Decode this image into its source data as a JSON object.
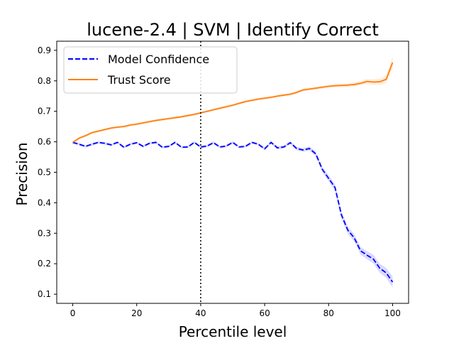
{
  "chart_data": {
    "type": "line",
    "title": "lucene-2.4 | SVM | Identify Correct",
    "xlabel": "Percentile level",
    "ylabel": "Precision",
    "xlim": [
      -5,
      105
    ],
    "ylim": [
      0.07,
      0.93
    ],
    "xticks": [
      0,
      20,
      40,
      60,
      80,
      100
    ],
    "yticks": [
      0.1,
      0.2,
      0.3,
      0.4,
      0.5,
      0.6,
      0.7,
      0.8,
      0.9
    ],
    "vline_x": 40,
    "legend_position": "upper-left",
    "x": [
      0,
      2,
      4,
      6,
      8,
      10,
      12,
      14,
      16,
      18,
      20,
      22,
      24,
      26,
      28,
      30,
      32,
      34,
      36,
      38,
      40,
      42,
      44,
      46,
      48,
      50,
      52,
      54,
      56,
      58,
      60,
      62,
      64,
      66,
      68,
      70,
      72,
      74,
      76,
      78,
      80,
      82,
      84,
      86,
      88,
      90,
      92,
      94,
      96,
      98,
      100
    ],
    "series": [
      {
        "name": "Model Confidence",
        "color": "#0000ff",
        "style": "dashed",
        "values": [
          0.598,
          0.592,
          0.585,
          0.592,
          0.598,
          0.595,
          0.59,
          0.598,
          0.582,
          0.592,
          0.597,
          0.585,
          0.595,
          0.598,
          0.582,
          0.585,
          0.598,
          0.582,
          0.583,
          0.598,
          0.583,
          0.586,
          0.597,
          0.583,
          0.586,
          0.598,
          0.583,
          0.585,
          0.598,
          0.592,
          0.577,
          0.598,
          0.58,
          0.583,
          0.597,
          0.578,
          0.573,
          0.578,
          0.56,
          0.51,
          0.48,
          0.45,
          0.36,
          0.31,
          0.285,
          0.242,
          0.228,
          0.215,
          0.185,
          0.17,
          0.14
        ],
        "band": [
          0.004,
          0.004,
          0.004,
          0.004,
          0.004,
          0.004,
          0.004,
          0.004,
          0.004,
          0.004,
          0.004,
          0.004,
          0.004,
          0.004,
          0.004,
          0.004,
          0.004,
          0.004,
          0.004,
          0.004,
          0.004,
          0.004,
          0.004,
          0.004,
          0.004,
          0.004,
          0.004,
          0.004,
          0.004,
          0.004,
          0.005,
          0.005,
          0.005,
          0.005,
          0.005,
          0.006,
          0.006,
          0.007,
          0.008,
          0.009,
          0.01,
          0.011,
          0.012,
          0.012,
          0.012,
          0.013,
          0.013,
          0.014,
          0.015,
          0.016,
          0.018
        ]
      },
      {
        "name": "Trust Score",
        "color": "#ff7f0e",
        "style": "solid",
        "values": [
          0.598,
          0.612,
          0.62,
          0.63,
          0.635,
          0.64,
          0.645,
          0.648,
          0.65,
          0.655,
          0.658,
          0.662,
          0.666,
          0.67,
          0.673,
          0.676,
          0.679,
          0.682,
          0.686,
          0.69,
          0.695,
          0.7,
          0.705,
          0.71,
          0.715,
          0.72,
          0.726,
          0.732,
          0.736,
          0.74,
          0.743,
          0.746,
          0.75,
          0.753,
          0.756,
          0.762,
          0.77,
          0.773,
          0.776,
          0.779,
          0.782,
          0.784,
          0.785,
          0.786,
          0.788,
          0.792,
          0.798,
          0.796,
          0.797,
          0.805,
          0.86
        ],
        "band": [
          0.004,
          0.004,
          0.004,
          0.004,
          0.004,
          0.004,
          0.004,
          0.004,
          0.004,
          0.004,
          0.004,
          0.004,
          0.004,
          0.004,
          0.004,
          0.004,
          0.004,
          0.004,
          0.004,
          0.004,
          0.004,
          0.004,
          0.004,
          0.004,
          0.004,
          0.004,
          0.004,
          0.004,
          0.004,
          0.004,
          0.004,
          0.004,
          0.004,
          0.004,
          0.004,
          0.005,
          0.005,
          0.005,
          0.005,
          0.005,
          0.005,
          0.006,
          0.006,
          0.006,
          0.007,
          0.007,
          0.008,
          0.009,
          0.01,
          0.012,
          0.02
        ]
      }
    ]
  }
}
